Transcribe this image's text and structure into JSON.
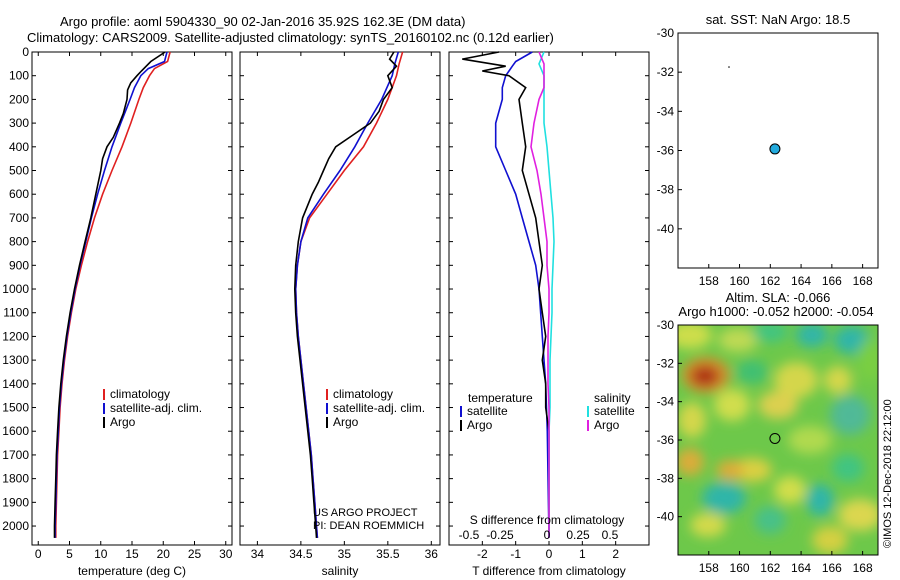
{
  "header": {
    "title_line1": "Argo profile: aoml 5904330_90 02-Jan-2016 35.92S 162.3E (DM data)",
    "title_line2": "Climatology: CARS2009. Satellite-adjusted climatology: synTS_20160102.nc (0.12d earlier)"
  },
  "colors": {
    "climatology": "#e02020",
    "satellite": "#1010d0",
    "argo": "#000000",
    "sal_diff_satellite": "#20e0e0",
    "sal_diff_argo": "#e020e0"
  },
  "credit": {
    "line1": "US ARGO PROJECT",
    "line2": "PI: DEAN ROEMMICH"
  },
  "side_stamp": "©IMOS 12-Dec-2018 22:12:00",
  "chart_data": [
    {
      "id": "temperature",
      "type": "line",
      "xlabel": "temperature (deg C)",
      "xlim": [
        -1,
        31
      ],
      "ylim": [
        2080,
        0
      ],
      "xticks": [
        "0",
        "5",
        "10",
        "15",
        "20",
        "25",
        "30"
      ],
      "yticks": [
        "0",
        "100",
        "200",
        "300",
        "400",
        "500",
        "600",
        "700",
        "800",
        "900",
        "1000",
        "1100",
        "1200",
        "1300",
        "1400",
        "1500",
        "1600",
        "1700",
        "1800",
        "1900",
        "2000"
      ],
      "legend": [
        "climatology",
        "satellite-adj. clim.",
        "Argo"
      ],
      "series": [
        {
          "name": "climatology",
          "depth": [
            0,
            40,
            70,
            100,
            150,
            200,
            300,
            400,
            500,
            600,
            700,
            800,
            900,
            1000,
            1100,
            1200,
            1300,
            1400,
            1500,
            1600,
            1700,
            1800,
            1900,
            2000,
            2050
          ],
          "values": [
            21.1,
            20.7,
            18.6,
            17.8,
            16.8,
            16.1,
            14.8,
            13.4,
            11.8,
            10.3,
            9.0,
            7.9,
            6.9,
            6.0,
            5.3,
            4.7,
            4.2,
            3.8,
            3.5,
            3.3,
            3.1,
            3.0,
            2.9,
            2.8,
            2.8
          ]
        },
        {
          "name": "satellite-adj. clim.",
          "depth": [
            0,
            40,
            70,
            100,
            150,
            200,
            300,
            400,
            500,
            600,
            700,
            800,
            900,
            1000,
            1100,
            1200,
            1300,
            1400,
            1500,
            1600,
            1700,
            1800,
            1900,
            2000,
            2050
          ],
          "values": [
            20.6,
            20.2,
            17.6,
            16.4,
            15.4,
            14.7,
            13.2,
            11.8,
            10.6,
            9.5,
            8.5,
            7.6,
            6.7,
            5.9,
            5.2,
            4.6,
            4.1,
            3.7,
            3.4,
            3.2,
            3.0,
            2.9,
            2.8,
            2.7,
            2.7
          ]
        },
        {
          "name": "Argo",
          "depth": [
            0,
            40,
            80,
            100,
            130,
            160,
            200,
            260,
            300,
            360,
            400,
            450,
            500,
            600,
            700,
            800,
            900,
            1000,
            1100,
            1200,
            1300,
            1400,
            1500,
            1600,
            1700,
            1800,
            1900,
            2000,
            2050
          ],
          "values": [
            20.3,
            18.0,
            16.5,
            15.8,
            14.8,
            14.3,
            14.2,
            13.6,
            13.0,
            12.0,
            11.0,
            10.3,
            10.0,
            9.2,
            8.4,
            7.5,
            6.6,
            5.8,
            5.1,
            4.5,
            4.0,
            3.6,
            3.3,
            3.1,
            2.9,
            2.8,
            2.7,
            2.6,
            2.6
          ]
        }
      ]
    },
    {
      "id": "salinity",
      "type": "line",
      "xlabel": "salinity",
      "xlim": [
        33.8,
        36.1
      ],
      "ylim": [
        2080,
        0
      ],
      "xticks": [
        "34",
        "34.5",
        "35",
        "35.5",
        "36"
      ],
      "legend": [
        "climatology",
        "satellite-adj. clim.",
        "Argo"
      ],
      "series": [
        {
          "name": "climatology",
          "depth": [
            0,
            50,
            100,
            200,
            300,
            400,
            500,
            600,
            700,
            800,
            900,
            1000,
            1100,
            1200,
            1300,
            1400,
            1500,
            1600,
            1700,
            1800,
            1900,
            2000,
            2050
          ],
          "values": [
            35.67,
            35.63,
            35.6,
            35.5,
            35.37,
            35.22,
            35.0,
            34.8,
            34.6,
            34.5,
            34.46,
            34.44,
            34.45,
            34.47,
            34.5,
            34.53,
            34.56,
            34.59,
            34.62,
            34.64,
            34.66,
            34.68,
            34.69
          ]
        },
        {
          "name": "satellite-adj. clim.",
          "depth": [
            0,
            50,
            100,
            200,
            300,
            400,
            500,
            600,
            700,
            800,
            900,
            1000,
            1100,
            1200,
            1300,
            1400,
            1500,
            1600,
            1700,
            1800,
            1900,
            2000,
            2050
          ],
          "values": [
            35.62,
            35.58,
            35.55,
            35.43,
            35.27,
            35.12,
            34.95,
            34.76,
            34.58,
            34.5,
            34.46,
            34.44,
            34.45,
            34.47,
            34.5,
            34.53,
            34.56,
            34.59,
            34.62,
            34.64,
            34.66,
            34.68,
            34.69
          ]
        },
        {
          "name": "Argo",
          "depth": [
            0,
            30,
            60,
            100,
            150,
            200,
            250,
            300,
            350,
            400,
            450,
            500,
            550,
            600,
            700,
            800,
            900,
            1000,
            1100,
            1200,
            1300,
            1400,
            1500,
            1600,
            1700,
            1800,
            1900,
            2000,
            2050
          ],
          "values": [
            35.57,
            35.52,
            35.6,
            35.5,
            35.55,
            35.45,
            35.4,
            35.3,
            35.1,
            34.9,
            34.82,
            34.76,
            34.7,
            34.63,
            34.52,
            34.47,
            34.44,
            34.43,
            34.44,
            34.46,
            34.49,
            34.52,
            34.55,
            34.58,
            34.61,
            34.63,
            34.65,
            34.67,
            34.68
          ]
        }
      ]
    },
    {
      "id": "difference",
      "type": "line",
      "xlabel": "T difference from climatology",
      "xlabel_top": "S difference from climatology",
      "xlim": [
        -3,
        3
      ],
      "ylim": [
        2080,
        0
      ],
      "xticks": [
        "-2",
        "-1",
        "0",
        "1",
        "2"
      ],
      "xticks_top": [
        "-0.5",
        "-0.25",
        "0",
        "0.25",
        "0.5"
      ],
      "legend_left_title": "temperature",
      "legend_right_title": "salinity",
      "legend_left": [
        "satellite",
        "Argo"
      ],
      "legend_right": [
        "satellite",
        "Argo"
      ],
      "series": [
        {
          "name": "temperature satellite",
          "depth": [
            0,
            40,
            60,
            80,
            100,
            150,
            200,
            300,
            400,
            500,
            600,
            700,
            800,
            900,
            1000,
            1200,
            1400,
            1600,
            2050
          ],
          "values": [
            -0.5,
            -1.0,
            -1.1,
            -1.2,
            -1.3,
            -1.4,
            -1.4,
            -1.6,
            -1.6,
            -1.3,
            -1.0,
            -0.8,
            -0.6,
            -0.4,
            -0.3,
            -0.2,
            -0.1,
            -0.05,
            0
          ]
        },
        {
          "name": "temperature Argo",
          "depth": [
            0,
            30,
            60,
            80,
            100,
            150,
            200,
            300,
            400,
            500,
            600,
            700,
            800,
            900,
            1000,
            1100,
            1200,
            1300,
            1400,
            1500,
            1600,
            2050
          ],
          "values": [
            -1.5,
            -2.6,
            -1.3,
            -2.0,
            -1.2,
            -0.7,
            -0.9,
            -0.8,
            -0.7,
            -0.8,
            -0.6,
            -0.4,
            -0.3,
            -0.2,
            -0.3,
            -0.2,
            -0.1,
            -0.2,
            -0.1,
            -0.1,
            0,
            0
          ]
        },
        {
          "name": "salinity satellite",
          "depth": [
            0,
            50,
            100,
            200,
            300,
            400,
            500,
            600,
            700,
            800,
            900,
            1000,
            1100,
            1200,
            1300,
            1400,
            1500,
            1600,
            2050
          ],
          "values": [
            -0.05,
            -0.1,
            -0.05,
            -0.05,
            -0.05,
            -0.02,
            0.0,
            0.02,
            0.04,
            0.05,
            0.04,
            0.03,
            0.03,
            0.02,
            0.01,
            0.01,
            0.01,
            0,
            0
          ]
        },
        {
          "name": "salinity Argo",
          "depth": [
            0,
            50,
            100,
            150,
            200,
            300,
            400,
            500,
            600,
            700,
            800,
            900,
            1000,
            1100,
            1200,
            1300,
            1400,
            1500,
            1600,
            2050
          ],
          "values": [
            -0.1,
            -0.05,
            -0.05,
            -0.05,
            -0.1,
            -0.15,
            -0.18,
            -0.12,
            -0.08,
            -0.05,
            -0.02,
            -0.02,
            0,
            0,
            -0.01,
            -0.01,
            -0.01,
            0,
            0,
            0
          ]
        }
      ]
    },
    {
      "id": "sst_map",
      "type": "scatter",
      "title": "sat. SST: NaN Argo: 18.5",
      "xlim": [
        156,
        169
      ],
      "ylim": [
        -42,
        -30
      ],
      "xticks": [
        "158",
        "160",
        "162",
        "164",
        "166",
        "168"
      ],
      "yticks": [
        "-30",
        "-32",
        "-34",
        "-36",
        "-38",
        "-40"
      ],
      "points": [
        {
          "x": 162.3,
          "y": -35.92
        }
      ]
    },
    {
      "id": "sla_map",
      "type": "heatmap",
      "title": "Altim. SLA: -0.066",
      "subtitle": "Argo h1000: -0.052 h2000: -0.054",
      "xlim": [
        156,
        169
      ],
      "ylim": [
        -42,
        -30
      ],
      "xticks": [
        "158",
        "160",
        "162",
        "164",
        "166",
        "168"
      ],
      "yticks": [
        "-30",
        "-32",
        "-34",
        "-36",
        "-38",
        "-40"
      ],
      "points": [
        {
          "x": 162.3,
          "y": -35.92
        }
      ]
    }
  ]
}
